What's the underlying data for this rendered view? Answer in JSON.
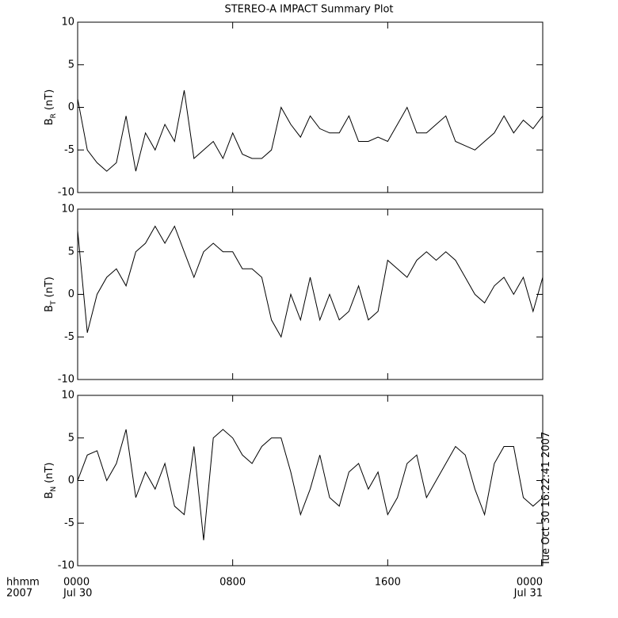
{
  "chart_data": {
    "type": "line",
    "title": "STEREO-A IMPACT Summary Plot",
    "x": [
      0,
      0.5,
      1,
      1.5,
      2,
      2.5,
      3,
      3.5,
      4,
      4.5,
      5,
      5.5,
      6,
      6.5,
      7,
      7.5,
      8,
      8.5,
      9,
      9.5,
      10,
      10.5,
      11,
      11.5,
      12,
      12.5,
      13,
      13.5,
      14,
      14.5,
      15,
      15.5,
      16,
      16.5,
      17,
      17.5,
      18,
      18.5,
      19,
      19.5,
      20,
      20.5,
      21,
      21.5,
      22,
      22.5,
      23,
      23.5,
      24
    ],
    "xlim": [
      0,
      24
    ],
    "xticks": [
      {
        "value": 0,
        "label": "0000"
      },
      {
        "value": 8,
        "label": "0800"
      },
      {
        "value": 16,
        "label": "1600"
      },
      {
        "value": 24,
        "label": "0000"
      }
    ],
    "xtick_dates": [
      {
        "value": 0,
        "label": "Jul 30"
      },
      {
        "value": 24,
        "label": "Jul 31"
      }
    ],
    "xlabel": "hhmm",
    "xlabel_year": "2007",
    "timestamp": "Tue Oct 30 16:22:41 2007",
    "ylim": [
      -10,
      10
    ],
    "yticks": [
      -10,
      -5,
      0,
      5,
      10
    ],
    "color": "#000000",
    "panels": [
      {
        "ylabel": "B",
        "ylabel_sub": "R",
        "ylabel_unit": "(nT)",
        "values": [
          1,
          -5,
          -6.5,
          -7.5,
          -6.5,
          -1,
          -7.5,
          -3,
          -5,
          -2,
          -4,
          2,
          -6,
          -5,
          -4,
          -6,
          -3,
          -5.5,
          -6,
          -6,
          -5,
          0,
          -2,
          -3.5,
          -1,
          -2.5,
          -3,
          -3,
          -1,
          -4,
          -4,
          -3.5,
          -4,
          -2,
          0,
          -3,
          -3,
          -2,
          -1,
          -4,
          -4.5,
          -5,
          -4,
          -3,
          -1,
          -3,
          -1.5,
          -2.5,
          -1
        ]
      },
      {
        "ylabel": "B",
        "ylabel_sub": "T",
        "ylabel_unit": "(nT)",
        "values": [
          7.5,
          -4.5,
          0,
          2,
          3,
          1,
          5,
          6,
          8,
          6,
          8,
          5,
          2,
          5,
          6,
          5,
          5,
          3,
          3,
          2,
          -3,
          -5,
          0,
          -3,
          2,
          -3,
          0,
          -3,
          -2,
          1,
          -3,
          -2,
          4,
          3,
          2,
          4,
          5,
          4,
          5,
          4,
          2,
          0,
          -1,
          1,
          2,
          0,
          2,
          -2,
          2
        ]
      },
      {
        "ylabel": "B",
        "ylabel_sub": "N",
        "ylabel_unit": "(nT)",
        "values": [
          0,
          3,
          3.5,
          0,
          2,
          6,
          -2,
          1,
          -1,
          2,
          -3,
          -4,
          4,
          -7,
          5,
          6,
          5,
          3,
          2,
          4,
          5,
          5,
          1,
          -4,
          -1,
          3,
          -2,
          -3,
          1,
          2,
          -1,
          1,
          -4,
          -2,
          2,
          3,
          -2,
          0,
          2,
          4,
          3,
          -1,
          -4,
          2,
          4,
          4,
          -2,
          -3,
          -2
        ]
      }
    ]
  }
}
